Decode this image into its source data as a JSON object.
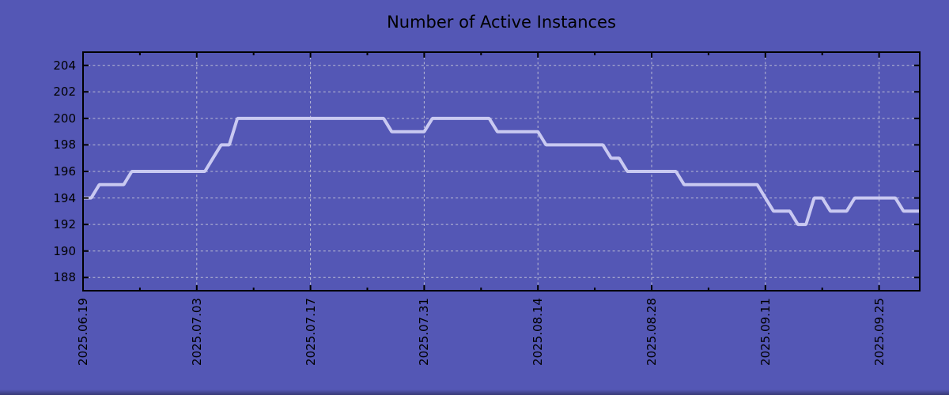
{
  "title": "Number of Active Instances",
  "colors": {
    "background": "#5457b5",
    "line": "#c9c9f1",
    "grid": "#ccccda",
    "axis": "#000000",
    "text": "#000000"
  },
  "chart_data": {
    "type": "line",
    "title": "Number of Active Instances",
    "xlabel": "",
    "ylabel": "",
    "grid": true,
    "legend": false,
    "ylim": [
      187,
      205
    ],
    "yticks": [
      188,
      190,
      192,
      194,
      196,
      198,
      200,
      202,
      204
    ],
    "y_tick_labels": [
      "188",
      "190",
      "192",
      "194",
      "196",
      "198",
      "200",
      "202",
      "204"
    ],
    "xticks": [
      {
        "day": 0,
        "label": "2025.06.19"
      },
      {
        "day": 14,
        "label": "2025.07.03"
      },
      {
        "day": 28,
        "label": "2025.07.17"
      },
      {
        "day": 42,
        "label": "2025.07.31"
      },
      {
        "day": 56,
        "label": "2025.08.14"
      },
      {
        "day": 70,
        "label": "2025.08.28"
      },
      {
        "day": 84,
        "label": "2025.09.11"
      },
      {
        "day": 98,
        "label": "2025.09.25"
      }
    ],
    "minor_xtick_days": [
      7,
      21,
      35,
      49,
      63,
      77,
      91
    ],
    "dates": [
      "2025.06.19",
      "2025.06.20",
      "2025.06.21",
      "2025.06.22",
      "2025.06.23",
      "2025.06.24",
      "2025.06.25",
      "2025.06.26",
      "2025.06.27",
      "2025.06.28",
      "2025.06.29",
      "2025.06.30",
      "2025.07.01",
      "2025.07.02",
      "2025.07.03",
      "2025.07.04",
      "2025.07.05",
      "2025.07.06",
      "2025.07.07",
      "2025.07.08",
      "2025.07.09",
      "2025.07.10",
      "2025.07.11",
      "2025.07.12",
      "2025.07.13",
      "2025.07.14",
      "2025.07.15",
      "2025.07.16",
      "2025.07.17",
      "2025.07.18",
      "2025.07.19",
      "2025.07.20",
      "2025.07.21",
      "2025.07.22",
      "2025.07.23",
      "2025.07.24",
      "2025.07.25",
      "2025.07.26",
      "2025.07.27",
      "2025.07.28",
      "2025.07.29",
      "2025.07.30",
      "2025.07.31",
      "2025.08.01",
      "2025.08.02",
      "2025.08.03",
      "2025.08.04",
      "2025.08.05",
      "2025.08.06",
      "2025.08.07",
      "2025.08.08",
      "2025.08.09",
      "2025.08.10",
      "2025.08.11",
      "2025.08.12",
      "2025.08.13",
      "2025.08.14",
      "2025.08.15",
      "2025.08.16",
      "2025.08.17",
      "2025.08.18",
      "2025.08.19",
      "2025.08.20",
      "2025.08.21",
      "2025.08.22",
      "2025.08.23",
      "2025.08.24",
      "2025.08.25",
      "2025.08.26",
      "2025.08.27",
      "2025.08.28",
      "2025.08.29",
      "2025.08.30",
      "2025.08.31",
      "2025.09.01",
      "2025.09.02",
      "2025.09.03",
      "2025.09.04",
      "2025.09.05",
      "2025.09.06",
      "2025.09.07",
      "2025.09.08",
      "2025.09.09",
      "2025.09.10",
      "2025.09.11",
      "2025.09.12",
      "2025.09.13",
      "2025.09.14",
      "2025.09.15",
      "2025.09.16",
      "2025.09.17",
      "2025.09.18",
      "2025.09.19",
      "2025.09.20",
      "2025.09.21",
      "2025.09.22",
      "2025.09.23",
      "2025.09.24",
      "2025.09.25",
      "2025.09.26",
      "2025.09.27",
      "2025.09.28",
      "2025.09.29",
      "2025.09.30"
    ],
    "values": [
      194,
      194,
      195,
      195,
      195,
      195,
      196,
      196,
      196,
      196,
      196,
      196,
      196,
      196,
      196,
      196,
      197,
      198,
      198,
      200,
      200,
      200,
      200,
      200,
      200,
      200,
      200,
      200,
      200,
      200,
      200,
      200,
      200,
      200,
      200,
      200,
      200,
      200,
      199,
      199,
      199,
      199,
      199,
      200,
      200,
      200,
      200,
      200,
      200,
      200,
      200,
      199,
      199,
      199,
      199,
      199,
      199,
      198,
      198,
      198,
      198,
      198,
      198,
      198,
      198,
      197,
      197,
      196,
      196,
      196,
      196,
      196,
      196,
      196,
      195,
      195,
      195,
      195,
      195,
      195,
      195,
      195,
      195,
      195,
      194,
      193,
      193,
      193,
      192,
      192,
      194,
      194,
      193,
      193,
      193,
      194,
      194,
      194,
      194,
      194,
      194,
      193,
      193,
      193
    ]
  }
}
